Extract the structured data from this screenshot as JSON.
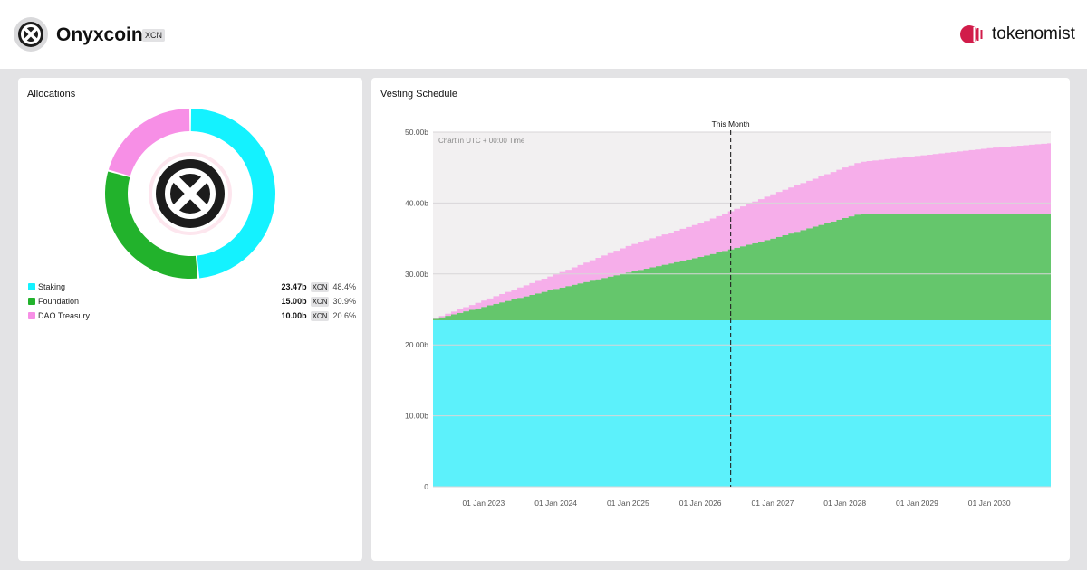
{
  "header": {
    "coin_name": "Onyxcoin",
    "ticker": "XCN",
    "brand_name": "tokenomist",
    "colors": {
      "brand": "#d11c4a",
      "coin_logo": "#1c1c1c"
    }
  },
  "allocations": {
    "title": "Allocations",
    "items": [
      {
        "label": "Staking",
        "value": "23.47b",
        "ticker": "XCN",
        "percent": "48.4%",
        "color": "#14f2ff",
        "share": 48.4
      },
      {
        "label": "Foundation",
        "value": "15.00b",
        "ticker": "XCN",
        "percent": "30.9%",
        "color": "#22b22c",
        "share": 30.9
      },
      {
        "label": "DAO Treasury",
        "value": "10.00b",
        "ticker": "XCN",
        "percent": "20.6%",
        "color": "#f78fe6",
        "share": 20.6
      }
    ]
  },
  "vesting": {
    "title": "Vesting Schedule",
    "annotation": "Chart in UTC + 00:00 Time",
    "marker_label": "This Month",
    "marker_x": 2026.42
  },
  "chart_data": {
    "type": "area",
    "stacked": true,
    "step": true,
    "x_start": 2022.3,
    "x_end": 2030.85,
    "x_tick_labels": [
      "01 Jan 2023",
      "01 Jan 2024",
      "01 Jan 2025",
      "01 Jan 2026",
      "01 Jan 2027",
      "01 Jan 2028",
      "01 Jan 2029",
      "01 Jan 2030"
    ],
    "x_tick_positions": [
      2023,
      2024,
      2025,
      2026,
      2027,
      2028,
      2029,
      2030
    ],
    "y_tick_labels": [
      "0",
      "10.00b",
      "20.00b",
      "30.00b",
      "40.00b",
      "50.00b"
    ],
    "y_tick_values": [
      0,
      10,
      20,
      30,
      40,
      50
    ],
    "ylim": [
      0,
      50
    ],
    "grid": true,
    "series": [
      {
        "name": "Staking",
        "color": "#14f2ff",
        "points": [
          [
            2022.3,
            23.47
          ],
          [
            2030.85,
            23.47
          ]
        ]
      },
      {
        "name": "Foundation",
        "color": "#22b22c",
        "points": [
          [
            2022.3,
            0.2
          ],
          [
            2024.0,
            4.5
          ],
          [
            2025.0,
            6.8
          ],
          [
            2026.0,
            9.0
          ],
          [
            2027.0,
            11.6
          ],
          [
            2028.17,
            15.0
          ],
          [
            2030.85,
            15.0
          ]
        ]
      },
      {
        "name": "DAO Treasury",
        "color": "#f78fe6",
        "points": [
          [
            2022.3,
            0.1
          ],
          [
            2024.0,
            2.1
          ],
          [
            2025.0,
            3.8
          ],
          [
            2026.0,
            4.8
          ],
          [
            2027.0,
            6.3
          ],
          [
            2028.17,
            7.3
          ],
          [
            2029.0,
            8.2
          ],
          [
            2030.0,
            9.3
          ],
          [
            2030.85,
            10.0
          ]
        ]
      }
    ]
  }
}
